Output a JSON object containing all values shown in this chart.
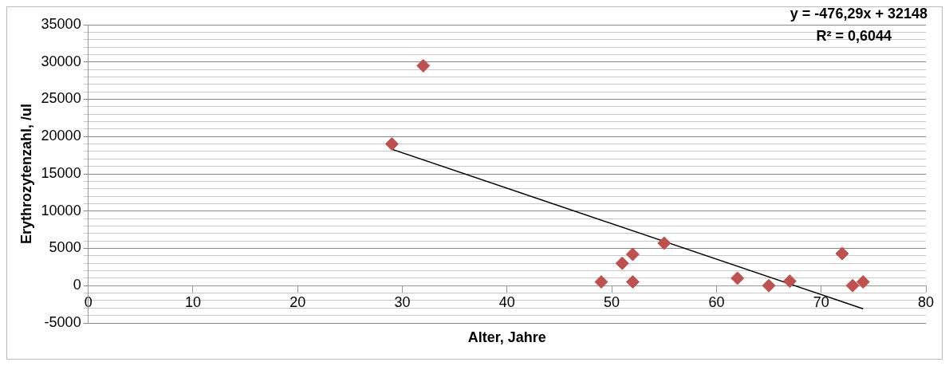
{
  "chart_data": {
    "type": "scatter",
    "xlabel": "Alter, Jahre",
    "ylabel": "Erythrozytenzahl, /ul",
    "annotations": [
      "y = -476,29x + 32148",
      "R² = 0,6044"
    ],
    "series": [
      {
        "marker": "diamond",
        "color": "#c0504d",
        "x": [
          29,
          32,
          49,
          51,
          52,
          52,
          55,
          62,
          65,
          67,
          72,
          73,
          74
        ],
        "values": [
          19000,
          29500,
          500,
          3000,
          4200,
          500,
          5700,
          1000,
          0,
          600,
          4300,
          0,
          500
        ]
      },
      {
        "type": "line",
        "marker": "none",
        "color": "#000000",
        "x": [
          29,
          74
        ],
        "values": [
          18300,
          -3100
        ]
      }
    ],
    "grid": "y",
    "legend": false,
    "xlim": [
      0,
      80
    ],
    "xticks": [
      0,
      10,
      20,
      30,
      40,
      50,
      60,
      70,
      80
    ],
    "ylim": [
      -5000,
      35000
    ],
    "yticks": [
      -5000,
      {
        "value": -4000,
        "label": null
      },
      {
        "value": -3000,
        "label": null
      },
      {
        "value": -2000,
        "label": null
      },
      {
        "value": -1000,
        "label": null
      },
      0,
      {
        "value": 1000,
        "label": null
      },
      {
        "value": 2000,
        "label": null
      },
      {
        "value": 3000,
        "label": null
      },
      {
        "value": 4000,
        "label": null
      },
      5000,
      {
        "value": 6000,
        "label": null
      },
      {
        "value": 7000,
        "label": null
      },
      {
        "value": 8000,
        "label": null
      },
      {
        "value": 9000,
        "label": null
      },
      10000,
      {
        "value": 11000,
        "label": null
      },
      {
        "value": 12000,
        "label": null
      },
      {
        "value": 13000,
        "label": null
      },
      {
        "value": 14000,
        "label": null
      },
      15000,
      {
        "value": 16000,
        "label": null
      },
      {
        "value": 17000,
        "label": null
      },
      {
        "value": 18000,
        "label": null
      },
      {
        "value": 19000,
        "label": null
      },
      20000,
      {
        "value": 21000,
        "label": null
      },
      {
        "value": 22000,
        "label": null
      },
      {
        "value": 23000,
        "label": null
      },
      {
        "value": 24000,
        "label": null
      },
      25000,
      {
        "value": 26000,
        "label": null
      },
      {
        "value": 27000,
        "label": null
      },
      {
        "value": 28000,
        "label": null
      },
      {
        "value": 29000,
        "label": null
      },
      30000,
      {
        "value": 31000,
        "label": null
      },
      {
        "value": 32000,
        "label": null
      },
      {
        "value": 33000,
        "label": null
      },
      {
        "value": 34000,
        "label": null
      },
      35000
    ]
  }
}
